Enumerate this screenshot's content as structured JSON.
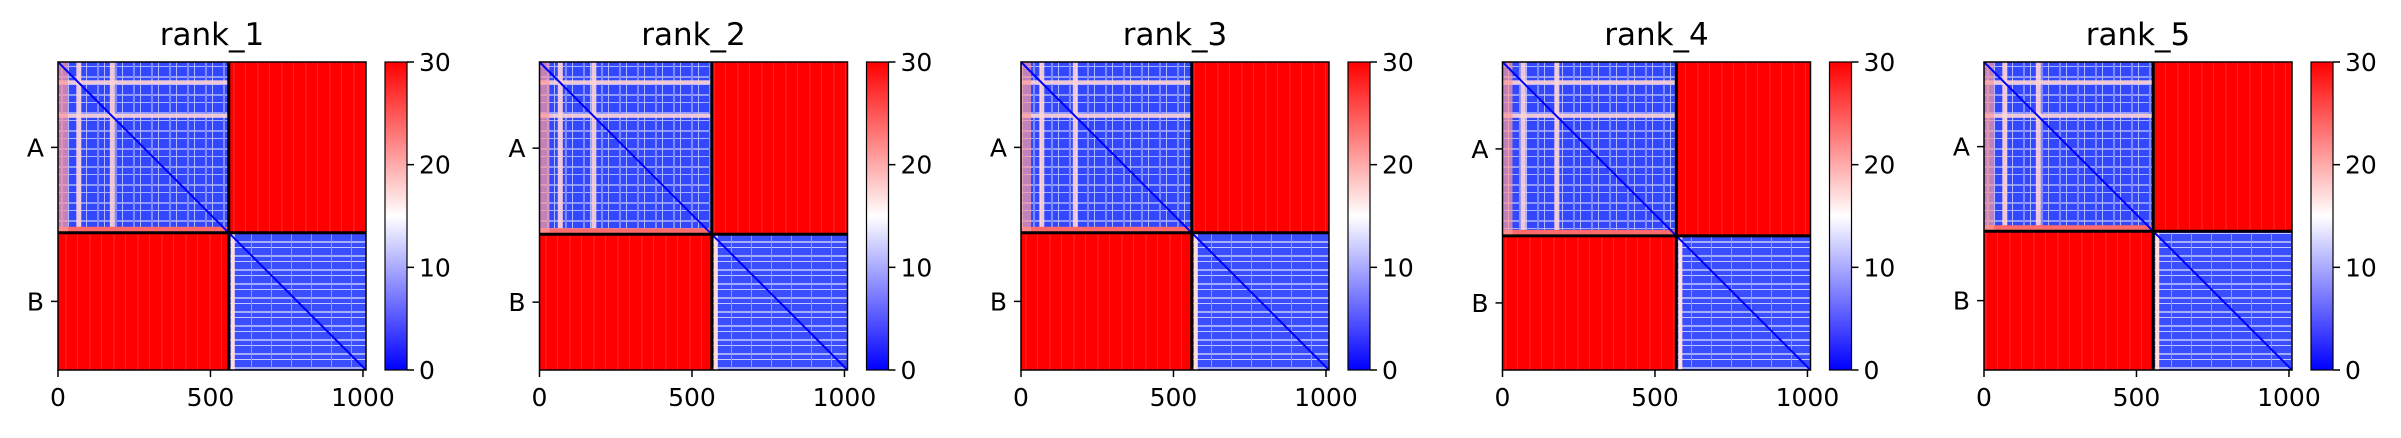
{
  "chart_data": {
    "type": "heatmap",
    "panels": [
      {
        "title": "rank_1",
        "split_x": 560,
        "split_y": 560
      },
      {
        "title": "rank_2",
        "split_x": 565,
        "split_y": 565
      },
      {
        "title": "rank_3",
        "split_x": 560,
        "split_y": 560
      },
      {
        "title": "rank_4",
        "split_x": 570,
        "split_y": 570
      },
      {
        "title": "rank_5",
        "split_x": 555,
        "split_y": 555
      }
    ],
    "n_residues": 1010,
    "xlim": [
      0,
      1010
    ],
    "x_ticks": [
      "0",
      "500",
      "1000"
    ],
    "x_tick_values": [
      0,
      500,
      1000
    ],
    "y_ticks": [
      "A",
      "B"
    ],
    "chains": [
      {
        "name": "A",
        "start": 0,
        "end": 560
      },
      {
        "name": "B",
        "start": 560,
        "end": 1010
      }
    ],
    "colorbar": {
      "range": [
        0,
        30
      ],
      "ticks": [
        "0",
        "10",
        "20",
        "30"
      ],
      "tick_values": [
        0,
        10,
        20,
        30
      ],
      "colormap": "bwr"
    },
    "colors": {
      "low": "#0000ff",
      "mid": "#ffffff",
      "high": "#ff0000"
    }
  }
}
